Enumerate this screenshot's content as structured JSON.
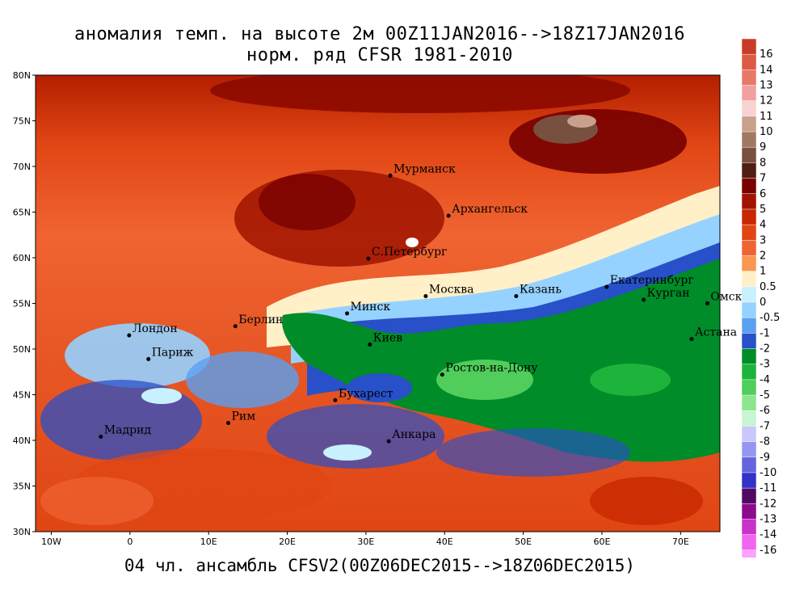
{
  "title_line1": "аномалия темп. на высоте 2м 00Z11JAN2016-->18Z17JAN2016",
  "title_line2": "норм. ряд CFSR 1981-2010",
  "bottom_caption": "04 чл. ансамбль CFSV2(00Z06DEC2015-->18Z06DEC2015)",
  "lat_labels": [
    "80N",
    "75N",
    "70N",
    "65N",
    "60N",
    "55N",
    "50N",
    "45N",
    "40N",
    "35N",
    "30N"
  ],
  "lon_labels": [
    "10W",
    "0",
    "10E",
    "20E",
    "30E",
    "40E",
    "50E",
    "60E",
    "70E"
  ],
  "cities": [
    {
      "name": "Мурманск",
      "lon": 33.1,
      "lat": 69.0
    },
    {
      "name": "Архангельск",
      "lon": 40.5,
      "lat": 64.6
    },
    {
      "name": "С.Петербург",
      "lon": 30.3,
      "lat": 59.9
    },
    {
      "name": "Москва",
      "lon": 37.6,
      "lat": 55.8
    },
    {
      "name": "Казань",
      "lon": 49.1,
      "lat": 55.8
    },
    {
      "name": "Екатеринбург",
      "lon": 60.6,
      "lat": 56.8
    },
    {
      "name": "Курган",
      "lon": 65.3,
      "lat": 55.4
    },
    {
      "name": "Омск",
      "lon": 73.4,
      "lat": 55.0
    },
    {
      "name": "Астана",
      "lon": 71.4,
      "lat": 51.1
    },
    {
      "name": "Минск",
      "lon": 27.6,
      "lat": 53.9
    },
    {
      "name": "Берлин",
      "lon": 13.4,
      "lat": 52.5
    },
    {
      "name": "Лондон",
      "lon": -0.1,
      "lat": 51.5
    },
    {
      "name": "Париж",
      "lon": 2.35,
      "lat": 48.9
    },
    {
      "name": "Киев",
      "lon": 30.5,
      "lat": 50.5
    },
    {
      "name": "Ростов-на-Дону",
      "lon": 39.7,
      "lat": 47.2
    },
    {
      "name": "Бухарест",
      "lon": 26.1,
      "lat": 44.4
    },
    {
      "name": "Рим",
      "lon": 12.5,
      "lat": 41.9
    },
    {
      "name": "Мадрид",
      "lon": -3.7,
      "lat": 40.4
    },
    {
      "name": "Анкара",
      "lon": 32.9,
      "lat": 39.9
    }
  ],
  "colorbar": {
    "labels": [
      "16",
      "14",
      "13",
      "12",
      "11",
      "10",
      "9",
      "8",
      "7",
      "6",
      "5",
      "4",
      "3",
      "2",
      "1",
      "0.5",
      "0",
      "-0.5",
      "-1",
      "-2",
      "-3",
      "-4",
      "-5",
      "-6",
      "-7",
      "-8",
      "-9",
      "-10",
      "-11",
      "-12",
      "-13",
      "-14",
      "-16"
    ],
    "colors": [
      "#c83c28",
      "#dc5a46",
      "#e8786a",
      "#f0a0a0",
      "#f8d2d2",
      "#c8a08c",
      "#a07864",
      "#785040",
      "#501e14",
      "#780000",
      "#a01400",
      "#c82800",
      "#e04614",
      "#f06432",
      "#fa9650",
      "#fff0c8",
      "#c8f0ff",
      "#96d2ff",
      "#5aa0f0",
      "#2850c8",
      "#008c28",
      "#1eb43c",
      "#50cd5a",
      "#8ce68c",
      "#c8f5d2",
      "#c8c8fa",
      "#9696f0",
      "#6464dc",
      "#3232c8",
      "#500a64",
      "#8c0a8c",
      "#c832c8",
      "#f064f0",
      "#ffa0ff"
    ]
  }
}
